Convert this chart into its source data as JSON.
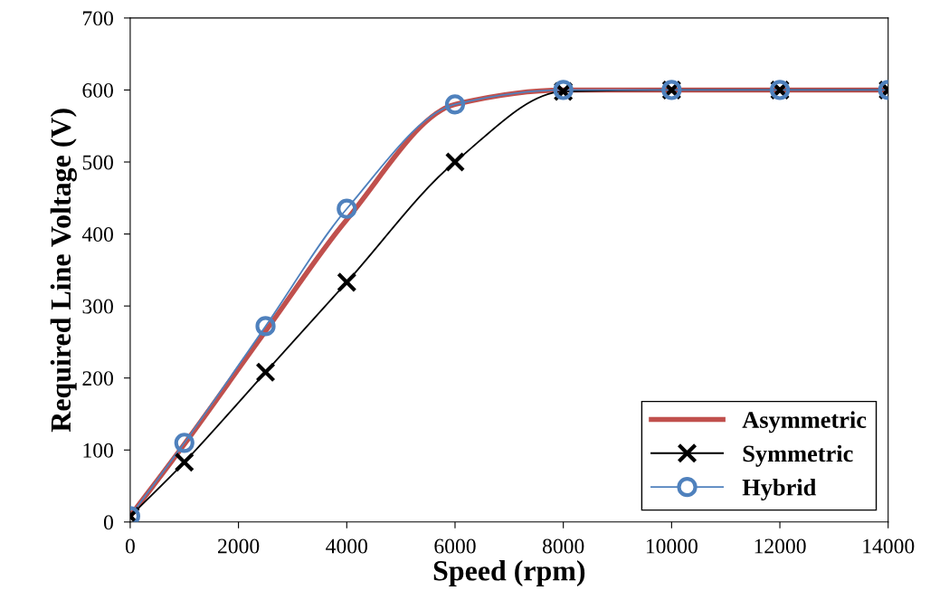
{
  "chart_data": {
    "type": "line",
    "xlabel": "Speed (rpm)",
    "ylabel": "Required Line Voltage (V)",
    "x": [
      0,
      1000,
      2500,
      4000,
      6000,
      8000,
      10000,
      12000,
      14000
    ],
    "series": [
      {
        "name": "Asymmetric",
        "color": "#c0504d",
        "marker": "none",
        "values": [
          8,
          108,
          265,
          420,
          580,
          600,
          600,
          600,
          600
        ]
      },
      {
        "name": "Symmetric",
        "color": "#000000",
        "marker": "cross",
        "values": [
          8,
          83,
          208,
          333,
          500,
          598,
          600,
          600,
          600
        ]
      },
      {
        "name": "Hybrid",
        "color": "#4f81bd",
        "marker": "circle",
        "values": [
          8,
          110,
          272,
          435,
          580,
          600,
          600,
          600,
          600
        ]
      }
    ],
    "xlim": [
      0,
      14000
    ],
    "xticks": [
      0,
      2000,
      4000,
      6000,
      8000,
      10000,
      12000,
      14000
    ],
    "ylim": [
      0,
      700
    ],
    "yticks": [
      0,
      100,
      200,
      300,
      400,
      500,
      600,
      700
    ],
    "grid": false,
    "legend": "bottom right",
    "line_style": "solid"
  }
}
